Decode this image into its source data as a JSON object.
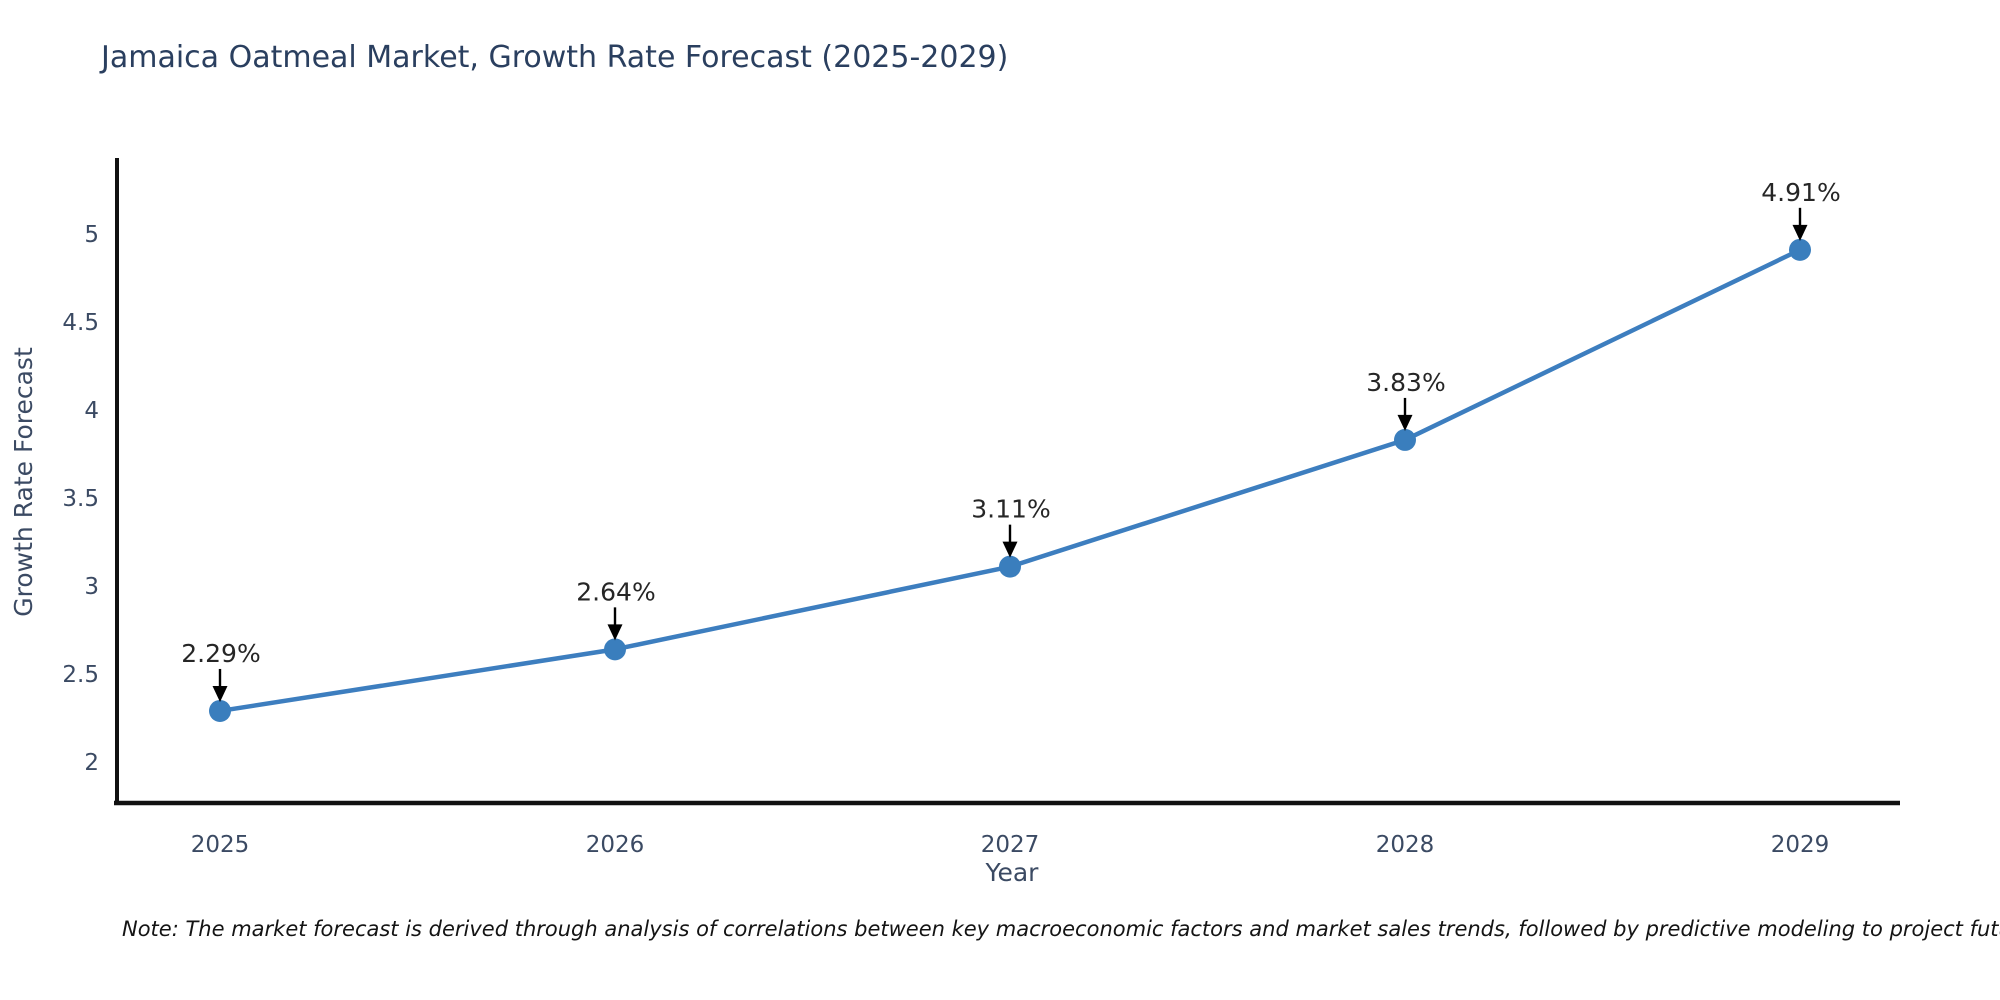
{
  "title": "Jamaica Oatmeal Market, Growth Rate Forecast (2025-2029)",
  "note": "Note: The market forecast is derived through analysis of correlations between key macroeconomic factors and market sales trends, followed by predictive modeling to project future sales",
  "chart_data": {
    "type": "line",
    "title": "Jamaica Oatmeal Market, Growth Rate Forecast (2025-2029)",
    "x": [
      2025,
      2026,
      2027,
      2028,
      2029
    ],
    "values": [
      2.29,
      2.64,
      3.11,
      3.83,
      4.91
    ],
    "point_labels": [
      "2.29%",
      "2.64%",
      "3.11%",
      "3.83%",
      "4.91%"
    ],
    "xlabel": "Year",
    "ylabel": "Growth Rate Forecast",
    "xticks": [
      "2025",
      "2026",
      "2027",
      "2028",
      "2029"
    ],
    "yticks": [
      2,
      2.5,
      3,
      3.5,
      4,
      4.5,
      5
    ],
    "ylim": [
      1.77,
      5.43
    ],
    "xlim": [
      2024.73,
      2029.25
    ],
    "grid": false,
    "legend": "none",
    "colors": {
      "line": "#3d7ebf",
      "marker": "#3a7ebd",
      "arrow": "#000000",
      "spine": "#111111",
      "tick_label": "#3b4a63",
      "axis_label": "#3b4a63",
      "annotation_text": "#262626",
      "title": "#2a3f5f"
    }
  }
}
